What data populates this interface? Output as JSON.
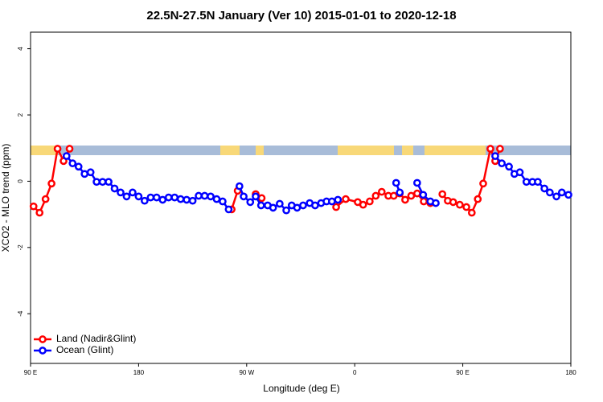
{
  "chart_data": {
    "type": "line",
    "title": "22.5N-27.5N January (Ver 10)   2015-01-01 to 2020-12-18",
    "x_label": "Longitude (deg E)",
    "y_label": "XCO2 - MLO trend (ppm)",
    "xlim": [
      90,
      540
    ],
    "xticks": [
      {
        "value": 90,
        "label": "90 E"
      },
      180,
      {
        "value": 270,
        "label": "90 W"
      },
      {
        "value": 360,
        "label": "0"
      },
      {
        "value": 450,
        "label": "90 E"
      },
      {
        "value": 540,
        "label": "180"
      }
    ],
    "ylim": [
      -5.5,
      4.5
    ],
    "yticks": [
      -4,
      -2,
      0,
      2,
      4
    ],
    "legend": "bottom-left",
    "series": [
      {
        "name": "Land (Nadir&Glint)",
        "color": "#ff0000",
        "x": [
          92.5,
          97.5,
          102.5,
          107.5,
          112.5,
          117.5,
          122.5,
          null,
          257.5,
          262.5,
          null,
          277.5,
          282.5,
          null,
          344.5,
          352.5,
          362.5,
          367,
          372.5,
          377.5,
          382.5,
          388,
          392.5,
          397.5,
          402,
          407,
          412,
          417.5,
          423,
          null,
          433,
          437.5,
          442,
          447.5,
          453,
          457.5,
          462.5,
          467,
          473,
          477,
          481
        ],
        "values": [
          -0.76,
          -0.95,
          -0.54,
          -0.07,
          0.98,
          0.61,
          0.98,
          null,
          -0.85,
          -0.29,
          null,
          -0.39,
          -0.51,
          null,
          -0.78,
          -0.54,
          -0.63,
          -0.71,
          -0.61,
          -0.44,
          -0.32,
          -0.44,
          -0.44,
          -0.37,
          -0.56,
          -0.44,
          -0.37,
          -0.61,
          -0.66,
          null,
          -0.39,
          -0.59,
          -0.63,
          -0.71,
          -0.78,
          -0.95,
          -0.54,
          -0.07,
          0.98,
          0.61,
          0.98
        ]
      },
      {
        "name": "Ocean (Glint)",
        "color": "#0000ff",
        "x": [
          120,
          125,
          130,
          135,
          140,
          145,
          150,
          155,
          160,
          165,
          170,
          175,
          180,
          185,
          190,
          195,
          200,
          205,
          210,
          215,
          220,
          225,
          230,
          235,
          240,
          245,
          250,
          255,
          null,
          264,
          267.5,
          273,
          277.5,
          282,
          287.5,
          292,
          297.5,
          303,
          307.5,
          312,
          317,
          322.5,
          327,
          332,
          336.5,
          341,
          346,
          null,
          394.5,
          397.5,
          null,
          412,
          417,
          423,
          427.5,
          null,
          477,
          482.5,
          488.5,
          493,
          497.5,
          503,
          508,
          512.5,
          518,
          522.5,
          528,
          532.5,
          538
        ],
        "values": [
          0.76,
          0.54,
          0.44,
          0.22,
          0.27,
          -0.02,
          -0.02,
          -0.02,
          -0.22,
          -0.34,
          -0.46,
          -0.34,
          -0.46,
          -0.59,
          -0.49,
          -0.49,
          -0.56,
          -0.49,
          -0.49,
          -0.54,
          -0.56,
          -0.59,
          -0.44,
          -0.44,
          -0.46,
          -0.54,
          -0.61,
          -0.85,
          null,
          -0.15,
          -0.46,
          -0.63,
          -0.46,
          -0.73,
          -0.73,
          -0.8,
          -0.68,
          -0.88,
          -0.73,
          -0.8,
          -0.73,
          -0.66,
          -0.73,
          -0.66,
          -0.61,
          -0.61,
          -0.56,
          null,
          -0.05,
          -0.34,
          null,
          -0.05,
          -0.41,
          -0.61,
          -0.66,
          null,
          0.76,
          0.54,
          0.44,
          0.22,
          0.27,
          -0.02,
          -0.02,
          -0.02,
          -0.22,
          -0.34,
          -0.46,
          -0.34,
          -0.41
        ]
      }
    ]
  }
}
